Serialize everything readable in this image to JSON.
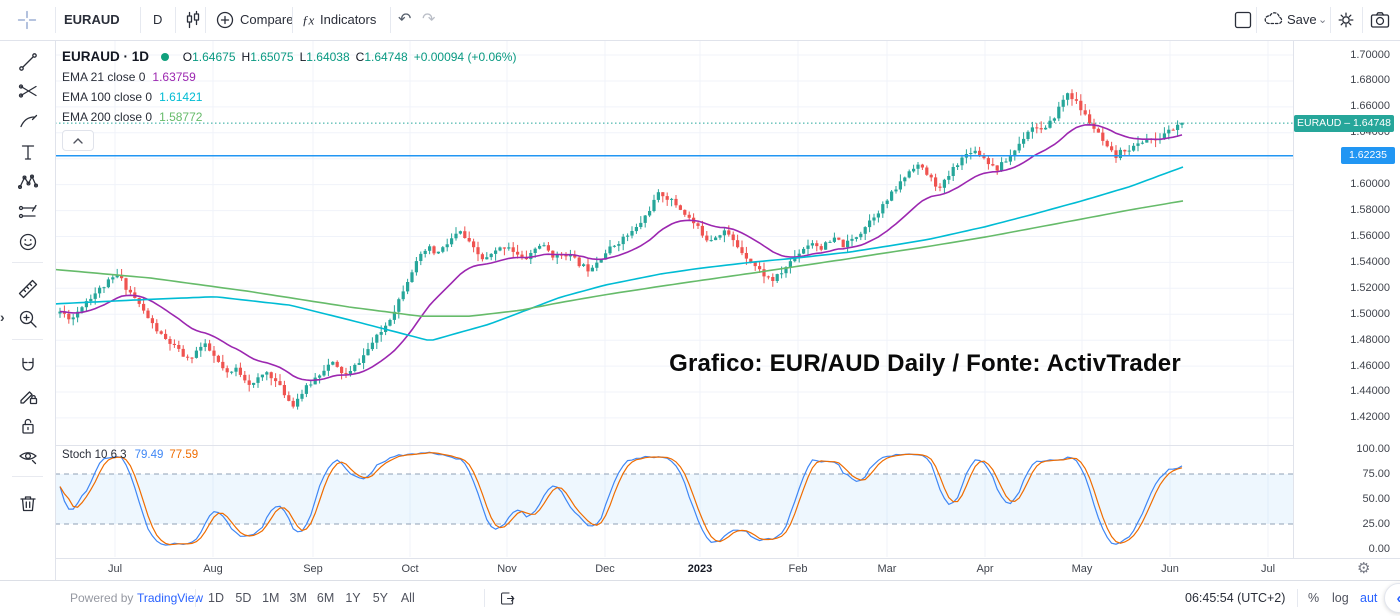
{
  "toolbar": {
    "symbol": "EURAUD",
    "interval": "D",
    "compare_label": "Compare",
    "indicators_label": "Indicators",
    "save_label": "Save"
  },
  "legend": {
    "title": "EURAUD · 1D",
    "ohlc": [
      [
        "O",
        "1.64675"
      ],
      [
        "H",
        "1.65075"
      ],
      [
        "L",
        "1.64038"
      ],
      [
        "C",
        "1.64748"
      ]
    ],
    "change": "+0.00094 (+0.06%)",
    "emas": [
      {
        "label": "EMA 21 close 0",
        "value": "1.63759"
      },
      {
        "label": "EMA 100 close 0",
        "value": "1.61421"
      },
      {
        "label": "EMA 200 close 0",
        "value": "1.58772"
      }
    ]
  },
  "annotation": "Grafico: EUR/AUD Daily / Fonte: ActivTrader",
  "price_axis": {
    "symbol_tag": "EURAUD – 1.64748",
    "level_tag": "1.62235"
  },
  "time_axis": {
    "labels": [
      {
        "t": "Jul",
        "x": 115
      },
      {
        "t": "Aug",
        "x": 213
      },
      {
        "t": "Sep",
        "x": 313
      },
      {
        "t": "Oct",
        "x": 410
      },
      {
        "t": "Nov",
        "x": 507
      },
      {
        "t": "Dec",
        "x": 605
      },
      {
        "t": "2023",
        "x": 700,
        "bold": true
      },
      {
        "t": "Feb",
        "x": 798
      },
      {
        "t": "Mar",
        "x": 887
      },
      {
        "t": "Apr",
        "x": 985
      },
      {
        "t": "May",
        "x": 1082
      },
      {
        "t": "Jun",
        "x": 1170
      },
      {
        "t": "Jul",
        "x": 1268
      }
    ]
  },
  "stoch": {
    "label": "Stoch 10 6 3",
    "k": "79.49",
    "d": "77.59",
    "ticks": [
      100,
      75,
      50,
      25,
      0
    ],
    "band": [
      25,
      75
    ]
  },
  "bottom_bar": {
    "powered_by": "Powered by",
    "brand": "TradingView",
    "ranges": [
      "1D",
      "5D",
      "1M",
      "3M",
      "6M",
      "1Y",
      "5Y",
      "All"
    ],
    "time": "06:45:54 (UTC+2)",
    "percent": "%",
    "log": "log",
    "auto": "aut"
  },
  "left_toolbar": {
    "groups": [
      [
        "trend-line",
        "gann-fibonacci",
        "brush",
        "text",
        "xabcd-pattern",
        "forecast",
        "emoji"
      ],
      [
        "ruler",
        "zoom-in"
      ],
      [
        "magnet",
        "drawing-mode",
        "lock-all",
        "hide-all"
      ],
      [
        "remove-all"
      ]
    ]
  },
  "chart_data": {
    "type": "candlestick",
    "symbol": "EURAUD",
    "interval": "1D",
    "last": {
      "o": 1.64675,
      "h": 1.65075,
      "l": 1.64038,
      "c": 1.64748
    },
    "indicators": {
      "ema21": 1.63759,
      "ema100": 1.61421,
      "ema200": 1.58772,
      "stoch_params": [
        10,
        6,
        3
      ],
      "stoch_k": 79.49,
      "stoch_d": 77.59
    },
    "levels": {
      "last_close": 1.64748,
      "horizontal_line": 1.62235
    },
    "ylim": [
      1.3991,
      1.7116
    ],
    "y_ticks": [
      1.7,
      1.68,
      1.66,
      1.64,
      1.62,
      1.6,
      1.58,
      1.56,
      1.54,
      1.52,
      1.5,
      1.48,
      1.46,
      1.44,
      1.42
    ],
    "x_ticks": [
      115,
      213,
      313,
      410,
      507,
      605,
      700,
      798,
      887,
      985,
      1082,
      1170,
      1268
    ],
    "bars": {
      "start": 60,
      "end": 1182,
      "spacing": 4.4
    },
    "seed": 11,
    "close_anchors": [
      [
        60,
        1.502
      ],
      [
        72,
        1.4965
      ],
      [
        84,
        1.509
      ],
      [
        96,
        1.517
      ],
      [
        108,
        1.5245
      ],
      [
        118,
        1.5305
      ],
      [
        126,
        1.521
      ],
      [
        134,
        1.5135
      ],
      [
        142,
        1.504
      ],
      [
        152,
        1.4925
      ],
      [
        162,
        1.4825
      ],
      [
        172,
        1.4765
      ],
      [
        180,
        1.4705
      ],
      [
        188,
        1.4645
      ],
      [
        196,
        1.4715
      ],
      [
        204,
        1.4765
      ],
      [
        212,
        1.4695
      ],
      [
        220,
        1.4605
      ],
      [
        228,
        1.4525
      ],
      [
        236,
        1.458
      ],
      [
        244,
        1.4515
      ],
      [
        252,
        1.4445
      ],
      [
        260,
        1.4515
      ],
      [
        268,
        1.456
      ],
      [
        276,
        1.4475
      ],
      [
        284,
        1.4395
      ],
      [
        292,
        1.4295
      ],
      [
        300,
        1.4375
      ],
      [
        308,
        1.4445
      ],
      [
        316,
        1.4515
      ],
      [
        324,
        1.458
      ],
      [
        332,
        1.4625
      ],
      [
        340,
        1.456
      ],
      [
        348,
        1.4525
      ],
      [
        356,
        1.461
      ],
      [
        364,
        1.4685
      ],
      [
        372,
        1.4775
      ],
      [
        380,
        1.485
      ],
      [
        388,
        1.4945
      ],
      [
        396,
        1.506
      ],
      [
        404,
        1.521
      ],
      [
        412,
        1.534
      ],
      [
        420,
        1.5435
      ],
      [
        428,
        1.5515
      ],
      [
        436,
        1.546
      ],
      [
        444,
        1.5515
      ],
      [
        452,
        1.5585
      ],
      [
        460,
        1.5635
      ],
      [
        468,
        1.5555
      ],
      [
        476,
        1.5475
      ],
      [
        484,
        1.5415
      ],
      [
        492,
        1.546
      ],
      [
        500,
        1.5505
      ],
      [
        508,
        1.5535
      ],
      [
        516,
        1.5465
      ],
      [
        524,
        1.5415
      ],
      [
        532,
        1.548
      ],
      [
        540,
        1.554
      ],
      [
        548,
        1.549
      ],
      [
        556,
        1.5435
      ],
      [
        564,
        1.548
      ],
      [
        572,
        1.5435
      ],
      [
        580,
        1.5385
      ],
      [
        588,
        1.535
      ],
      [
        596,
        1.5405
      ],
      [
        604,
        1.5465
      ],
      [
        612,
        1.552
      ],
      [
        620,
        1.557
      ],
      [
        628,
        1.561
      ],
      [
        636,
        1.566
      ],
      [
        644,
        1.574
      ],
      [
        652,
        1.5845
      ],
      [
        660,
        1.594
      ],
      [
        668,
        1.5895
      ],
      [
        676,
        1.5845
      ],
      [
        684,
        1.5785
      ],
      [
        692,
        1.5715
      ],
      [
        700,
        1.5645
      ],
      [
        708,
        1.5575
      ],
      [
        716,
        1.5605
      ],
      [
        724,
        1.565
      ],
      [
        732,
        1.5575
      ],
      [
        740,
        1.55
      ],
      [
        748,
        1.5435
      ],
      [
        756,
        1.5365
      ],
      [
        764,
        1.5305
      ],
      [
        772,
        1.526
      ],
      [
        780,
        1.5305
      ],
      [
        788,
        1.5385
      ],
      [
        796,
        1.5455
      ],
      [
        804,
        1.5515
      ],
      [
        812,
        1.556
      ],
      [
        820,
        1.551
      ],
      [
        828,
        1.5545
      ],
      [
        836,
        1.5585
      ],
      [
        844,
        1.5525
      ],
      [
        852,
        1.5575
      ],
      [
        860,
        1.563
      ],
      [
        868,
        1.571
      ],
      [
        876,
        1.578
      ],
      [
        884,
        1.5845
      ],
      [
        892,
        1.593
      ],
      [
        900,
        1.601
      ],
      [
        908,
        1.6095
      ],
      [
        916,
        1.6165
      ],
      [
        924,
        1.6105
      ],
      [
        932,
        1.6035
      ],
      [
        940,
        1.5965
      ],
      [
        948,
        1.606
      ],
      [
        956,
        1.616
      ],
      [
        964,
        1.6215
      ],
      [
        972,
        1.6275
      ],
      [
        980,
        1.6235
      ],
      [
        988,
        1.618
      ],
      [
        996,
        1.6115
      ],
      [
        1004,
        1.617
      ],
      [
        1012,
        1.6235
      ],
      [
        1020,
        1.6325
      ],
      [
        1028,
        1.642
      ],
      [
        1036,
        1.6455
      ],
      [
        1044,
        1.6405
      ],
      [
        1052,
        1.6495
      ],
      [
        1060,
        1.661
      ],
      [
        1068,
        1.6715
      ],
      [
        1076,
        1.6635
      ],
      [
        1084,
        1.6545
      ],
      [
        1092,
        1.6455
      ],
      [
        1100,
        1.6365
      ],
      [
        1108,
        1.6265
      ],
      [
        1116,
        1.6215
      ],
      [
        1124,
        1.6275
      ],
      [
        1132,
        1.628
      ],
      [
        1140,
        1.632
      ],
      [
        1148,
        1.6365
      ],
      [
        1156,
        1.6325
      ],
      [
        1164,
        1.6395
      ],
      [
        1172,
        1.6425
      ],
      [
        1182,
        1.6475
      ]
    ],
    "ema100_anchors": [
      [
        55,
        1.508
      ],
      [
        150,
        1.5115
      ],
      [
        215,
        1.5135
      ],
      [
        290,
        1.507
      ],
      [
        350,
        1.4955
      ],
      [
        430,
        1.4795
      ],
      [
        490,
        1.4925
      ],
      [
        560,
        1.513
      ],
      [
        605,
        1.5225
      ],
      [
        660,
        1.531
      ],
      [
        700,
        1.5355
      ],
      [
        750,
        1.54
      ],
      [
        798,
        1.5435
      ],
      [
        850,
        1.548
      ],
      [
        887,
        1.5525
      ],
      [
        930,
        1.558
      ],
      [
        985,
        1.5675
      ],
      [
        1030,
        1.5765
      ],
      [
        1082,
        1.5875
      ],
      [
        1130,
        1.5985
      ],
      [
        1185,
        1.6142
      ]
    ],
    "ema200_anchors": [
      [
        55,
        1.5345
      ],
      [
        150,
        1.528
      ],
      [
        250,
        1.5175
      ],
      [
        350,
        1.5055
      ],
      [
        420,
        1.4985
      ],
      [
        470,
        1.4985
      ],
      [
        520,
        1.503
      ],
      [
        560,
        1.509
      ],
      [
        605,
        1.515
      ],
      [
        660,
        1.5215
      ],
      [
        700,
        1.526
      ],
      [
        750,
        1.5315
      ],
      [
        798,
        1.537
      ],
      [
        850,
        1.543
      ],
      [
        887,
        1.5475
      ],
      [
        930,
        1.5525
      ],
      [
        985,
        1.5595
      ],
      [
        1030,
        1.566
      ],
      [
        1082,
        1.5735
      ],
      [
        1130,
        1.5805
      ],
      [
        1185,
        1.5877
      ]
    ],
    "colors": {
      "up": "#26a69a",
      "down": "#ef5350",
      "ema21": "#9c27b0",
      "ema100": "#00bcd4",
      "ema200": "#66bb6a",
      "level_blue": "#2196f3",
      "last_price_line": "#26a69a",
      "stoch_k": "#3f87f5",
      "stoch_d": "#ef6c00",
      "band_fill": "#2196f3",
      "grid": "#f0f3fa"
    }
  }
}
